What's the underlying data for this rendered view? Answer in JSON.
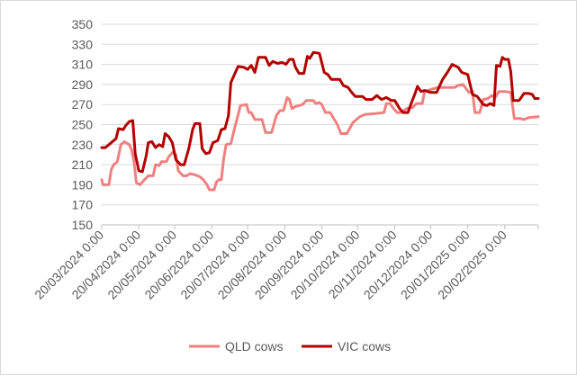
{
  "chart_data": {
    "type": "line",
    "title": "",
    "xlabel": "",
    "ylabel": "",
    "ylim": [
      150,
      350
    ],
    "yticks": [
      150,
      170,
      190,
      210,
      230,
      250,
      270,
      290,
      310,
      330,
      350
    ],
    "xlim": [
      "2024-03-20",
      "2025-03-20"
    ],
    "xtick_labels": [
      "20/03/2024 0:00",
      "20/04/2024 0:00",
      "20/05/2024 0:00",
      "20/06/2024 0:00",
      "20/07/2024 0:00",
      "20/08/2024 0:00",
      "20/09/2024 0:00",
      "20/10/2024 0:00",
      "20/11/2024 0:00",
      "20/12/2024 0:00",
      "20/01/2025 0:00",
      "20/02/2025 0:00"
    ],
    "grid": {
      "horizontal": true,
      "vertical": false
    },
    "legend": {
      "position": "bottom"
    },
    "series": [
      {
        "name": "QLD cows",
        "color": "#f08080",
        "points": [
          [
            "2024-03-20",
            195
          ],
          [
            "2024-03-21",
            190
          ],
          [
            "2024-03-26",
            190
          ],
          [
            "2024-03-28",
            205
          ],
          [
            "2024-03-30",
            210
          ],
          [
            "2024-04-02",
            213
          ],
          [
            "2024-04-05",
            230
          ],
          [
            "2024-04-08",
            233
          ],
          [
            "2024-04-12",
            230
          ],
          [
            "2024-04-14",
            225
          ],
          [
            "2024-04-16",
            213
          ],
          [
            "2024-04-18",
            192
          ],
          [
            "2024-04-21",
            190
          ],
          [
            "2024-04-24",
            194
          ],
          [
            "2024-04-28",
            199
          ],
          [
            "2024-05-02",
            199
          ],
          [
            "2024-05-04",
            210
          ],
          [
            "2024-05-07",
            209
          ],
          [
            "2024-05-09",
            213
          ],
          [
            "2024-05-13",
            213
          ],
          [
            "2024-05-15",
            218
          ],
          [
            "2024-05-18",
            222
          ],
          [
            "2024-05-21",
            220
          ],
          [
            "2024-05-23",
            204
          ],
          [
            "2024-05-27",
            199
          ],
          [
            "2024-05-30",
            199
          ],
          [
            "2024-06-02",
            201
          ],
          [
            "2024-06-06",
            200
          ],
          [
            "2024-06-10",
            198
          ],
          [
            "2024-06-13",
            195
          ],
          [
            "2024-06-16",
            190
          ],
          [
            "2024-06-18",
            185
          ],
          [
            "2024-06-22",
            185
          ],
          [
            "2024-06-24",
            193
          ],
          [
            "2024-06-26",
            195
          ],
          [
            "2024-06-28",
            195
          ],
          [
            "2024-06-30",
            216
          ],
          [
            "2024-07-02",
            230
          ],
          [
            "2024-07-06",
            231
          ],
          [
            "2024-07-09",
            246
          ],
          [
            "2024-07-11",
            255
          ],
          [
            "2024-07-14",
            269
          ],
          [
            "2024-07-19",
            270
          ],
          [
            "2024-07-21",
            262
          ],
          [
            "2024-07-23",
            262
          ],
          [
            "2024-07-26",
            255
          ],
          [
            "2024-08-01",
            255
          ],
          [
            "2024-08-04",
            242
          ],
          [
            "2024-08-09",
            242
          ],
          [
            "2024-08-13",
            259
          ],
          [
            "2024-08-16",
            264
          ],
          [
            "2024-08-19",
            264
          ],
          [
            "2024-08-22",
            277
          ],
          [
            "2024-08-24",
            275
          ],
          [
            "2024-08-26",
            266
          ],
          [
            "2024-08-29",
            268
          ],
          [
            "2024-09-04",
            270
          ],
          [
            "2024-09-07",
            274
          ],
          [
            "2024-09-13",
            274
          ],
          [
            "2024-09-15",
            271
          ],
          [
            "2024-09-18",
            272
          ],
          [
            "2024-09-20",
            270
          ],
          [
            "2024-09-23",
            262
          ],
          [
            "2024-09-27",
            262
          ],
          [
            "2024-10-03",
            250
          ],
          [
            "2024-10-06",
            241
          ],
          [
            "2024-10-11",
            241
          ],
          [
            "2024-10-16",
            252
          ],
          [
            "2024-10-22",
            258
          ],
          [
            "2024-10-26",
            260
          ],
          [
            "2024-11-04",
            261
          ],
          [
            "2024-11-11",
            262
          ],
          [
            "2024-11-13",
            271
          ],
          [
            "2024-11-16",
            271
          ],
          [
            "2024-11-19",
            266
          ],
          [
            "2024-11-22",
            262
          ],
          [
            "2024-11-25",
            262
          ],
          [
            "2024-11-30",
            266
          ],
          [
            "2024-12-05",
            267
          ],
          [
            "2024-12-08",
            271
          ],
          [
            "2024-12-13",
            271
          ],
          [
            "2024-12-15",
            283
          ],
          [
            "2024-12-20",
            285
          ],
          [
            "2024-12-26",
            287
          ],
          [
            "2025-01-06",
            287
          ],
          [
            "2025-01-09",
            287
          ],
          [
            "2025-01-12",
            289
          ],
          [
            "2025-01-16",
            290
          ],
          [
            "2025-01-18",
            287
          ],
          [
            "2025-01-21",
            282
          ],
          [
            "2025-01-24",
            283
          ],
          [
            "2025-01-26",
            262
          ],
          [
            "2025-01-30",
            262
          ],
          [
            "2025-02-02",
            275
          ],
          [
            "2025-02-06",
            276
          ],
          [
            "2025-02-09",
            279
          ],
          [
            "2025-02-12",
            277
          ],
          [
            "2025-02-15",
            283
          ],
          [
            "2025-02-20",
            283
          ],
          [
            "2025-02-25",
            282
          ],
          [
            "2025-02-28",
            256
          ],
          [
            "2025-03-05",
            256
          ],
          [
            "2025-03-08",
            255
          ],
          [
            "2025-03-12",
            257
          ],
          [
            "2025-03-20",
            258
          ]
        ]
      },
      {
        "name": "VIC cows",
        "color": "#b30000",
        "points": [
          [
            "2024-03-20",
            227
          ],
          [
            "2024-03-23",
            227
          ],
          [
            "2024-03-27",
            231
          ],
          [
            "2024-04-01",
            236
          ],
          [
            "2024-04-03",
            246
          ],
          [
            "2024-04-07",
            245
          ],
          [
            "2024-04-09",
            249
          ],
          [
            "2024-04-12",
            253
          ],
          [
            "2024-04-15",
            254
          ],
          [
            "2024-04-17",
            221
          ],
          [
            "2024-04-20",
            204
          ],
          [
            "2024-04-23",
            203
          ],
          [
            "2024-04-26",
            218
          ],
          [
            "2024-04-28",
            232
          ],
          [
            "2024-05-01",
            233
          ],
          [
            "2024-05-04",
            227
          ],
          [
            "2024-05-07",
            230
          ],
          [
            "2024-05-10",
            228
          ],
          [
            "2024-05-12",
            241
          ],
          [
            "2024-05-15",
            238
          ],
          [
            "2024-05-18",
            232
          ],
          [
            "2024-05-21",
            215
          ],
          [
            "2024-05-25",
            210
          ],
          [
            "2024-05-28",
            210
          ],
          [
            "2024-06-01",
            227
          ],
          [
            "2024-06-04",
            245
          ],
          [
            "2024-06-06",
            251
          ],
          [
            "2024-06-10",
            251
          ],
          [
            "2024-06-12",
            226
          ],
          [
            "2024-06-15",
            221
          ],
          [
            "2024-06-18",
            222
          ],
          [
            "2024-06-21",
            232
          ],
          [
            "2024-06-25",
            234
          ],
          [
            "2024-06-28",
            245
          ],
          [
            "2024-07-01",
            246
          ],
          [
            "2024-07-04",
            259
          ],
          [
            "2024-07-06",
            292
          ],
          [
            "2024-07-09",
            300
          ],
          [
            "2024-07-12",
            308
          ],
          [
            "2024-07-17",
            307
          ],
          [
            "2024-07-20",
            305
          ],
          [
            "2024-07-23",
            309
          ],
          [
            "2024-07-26",
            302
          ],
          [
            "2024-07-29",
            317
          ],
          [
            "2024-08-04",
            317
          ],
          [
            "2024-08-07",
            309
          ],
          [
            "2024-08-10",
            313
          ],
          [
            "2024-08-14",
            311
          ],
          [
            "2024-08-18",
            312
          ],
          [
            "2024-08-21",
            310
          ],
          [
            "2024-08-24",
            315
          ],
          [
            "2024-08-27",
            315
          ],
          [
            "2024-08-29",
            307
          ],
          [
            "2024-09-01",
            301
          ],
          [
            "2024-09-05",
            301
          ],
          [
            "2024-09-08",
            318
          ],
          [
            "2024-09-10",
            316
          ],
          [
            "2024-09-13",
            322
          ],
          [
            "2024-09-18",
            321
          ],
          [
            "2024-09-22",
            302
          ],
          [
            "2024-09-25",
            300
          ],
          [
            "2024-09-28",
            295
          ],
          [
            "2024-10-05",
            295
          ],
          [
            "2024-10-08",
            289
          ],
          [
            "2024-10-12",
            287
          ],
          [
            "2024-10-15",
            282
          ],
          [
            "2024-10-18",
            278
          ],
          [
            "2024-10-24",
            278
          ],
          [
            "2024-10-27",
            275
          ],
          [
            "2024-11-01",
            275
          ],
          [
            "2024-11-05",
            279
          ],
          [
            "2024-11-09",
            275
          ],
          [
            "2024-11-13",
            277
          ],
          [
            "2024-11-17",
            274
          ],
          [
            "2024-11-20",
            274
          ],
          [
            "2024-11-24",
            266
          ],
          [
            "2024-11-27",
            262
          ],
          [
            "2024-12-01",
            262
          ],
          [
            "2024-12-04",
            272
          ],
          [
            "2024-12-07",
            281
          ],
          [
            "2024-12-09",
            288
          ],
          [
            "2024-12-12",
            283
          ],
          [
            "2024-12-15",
            284
          ],
          [
            "2024-12-20",
            282
          ],
          [
            "2024-12-25",
            282
          ],
          [
            "2024-12-30",
            295
          ],
          [
            "2025-01-03",
            302
          ],
          [
            "2025-01-07",
            310
          ],
          [
            "2025-01-12",
            307
          ],
          [
            "2025-01-15",
            302
          ],
          [
            "2025-01-20",
            300
          ],
          [
            "2025-01-24",
            280
          ],
          [
            "2025-01-28",
            278
          ],
          [
            "2025-02-02",
            270
          ],
          [
            "2025-02-05",
            269
          ],
          [
            "2025-02-08",
            271
          ],
          [
            "2025-02-11",
            269
          ],
          [
            "2025-02-13",
            309
          ],
          [
            "2025-02-16",
            308
          ],
          [
            "2025-02-18",
            317
          ],
          [
            "2025-02-20",
            315
          ],
          [
            "2025-02-23",
            315
          ],
          [
            "2025-02-25",
            303
          ],
          [
            "2025-02-27",
            274
          ],
          [
            "2025-03-04",
            274
          ],
          [
            "2025-03-08",
            281
          ],
          [
            "2025-03-12",
            281
          ],
          [
            "2025-03-15",
            280
          ],
          [
            "2025-03-17",
            276
          ],
          [
            "2025-03-20",
            276
          ]
        ]
      }
    ]
  }
}
